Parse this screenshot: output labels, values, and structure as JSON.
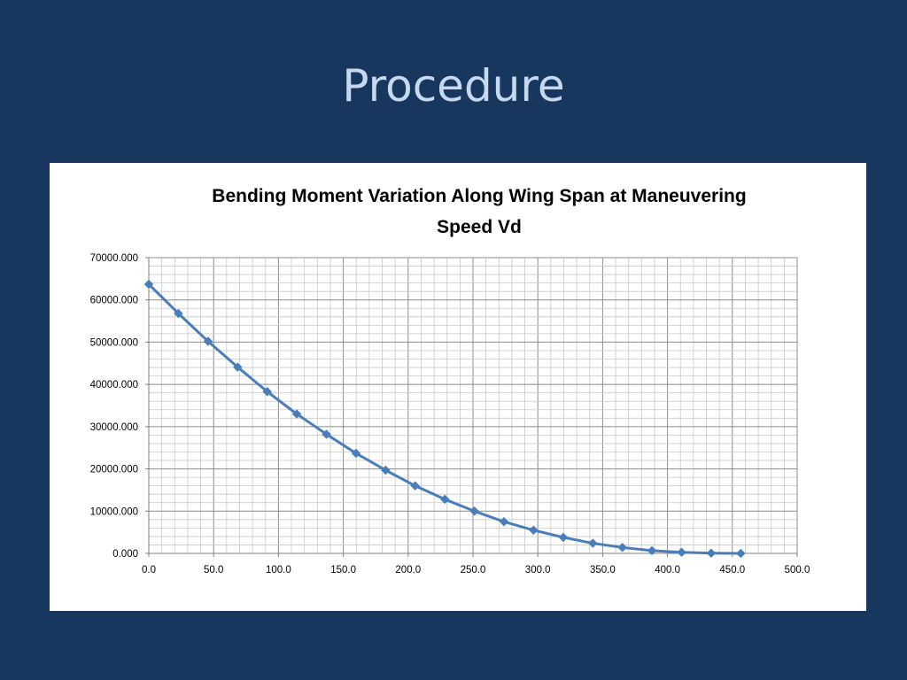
{
  "slide": {
    "title": "Procedure"
  },
  "chart_data": {
    "type": "line",
    "title_lines": [
      "Bending Moment Variation Along Wing Span at Maneuvering",
      "Speed Vd"
    ],
    "xlabel": "",
    "ylabel": "",
    "xlim": [
      0,
      500
    ],
    "ylim": [
      0,
      70000
    ],
    "x_ticks": [
      "0.0",
      "50.0",
      "100.0",
      "150.0",
      "200.0",
      "250.0",
      "300.0",
      "350.0",
      "400.0",
      "450.0",
      "500.0"
    ],
    "y_ticks": [
      "0.000",
      "10000.000",
      "20000.000",
      "30000.000",
      "40000.000",
      "50000.000",
      "60000.000",
      "70000.000"
    ],
    "grid": true,
    "legend": "none",
    "series": [
      {
        "color": "#4a7ebb",
        "marker": "diamond",
        "points": [
          {
            "x": 0.0,
            "y": 63700
          },
          {
            "x": 22.8,
            "y": 56800
          },
          {
            "x": 45.7,
            "y": 50200
          },
          {
            "x": 68.5,
            "y": 44100
          },
          {
            "x": 91.3,
            "y": 38300
          },
          {
            "x": 114.1,
            "y": 33000
          },
          {
            "x": 137.0,
            "y": 28200
          },
          {
            "x": 159.8,
            "y": 23700
          },
          {
            "x": 182.6,
            "y": 19700
          },
          {
            "x": 205.4,
            "y": 16000
          },
          {
            "x": 228.3,
            "y": 12800
          },
          {
            "x": 251.1,
            "y": 10000
          },
          {
            "x": 273.9,
            "y": 7500
          },
          {
            "x": 296.7,
            "y": 5500
          },
          {
            "x": 319.6,
            "y": 3800
          },
          {
            "x": 342.4,
            "y": 2400
          },
          {
            "x": 365.2,
            "y": 1400
          },
          {
            "x": 388.0,
            "y": 650
          },
          {
            "x": 410.9,
            "y": 250
          },
          {
            "x": 433.7,
            "y": 60
          },
          {
            "x": 456.5,
            "y": 0
          }
        ]
      }
    ]
  }
}
